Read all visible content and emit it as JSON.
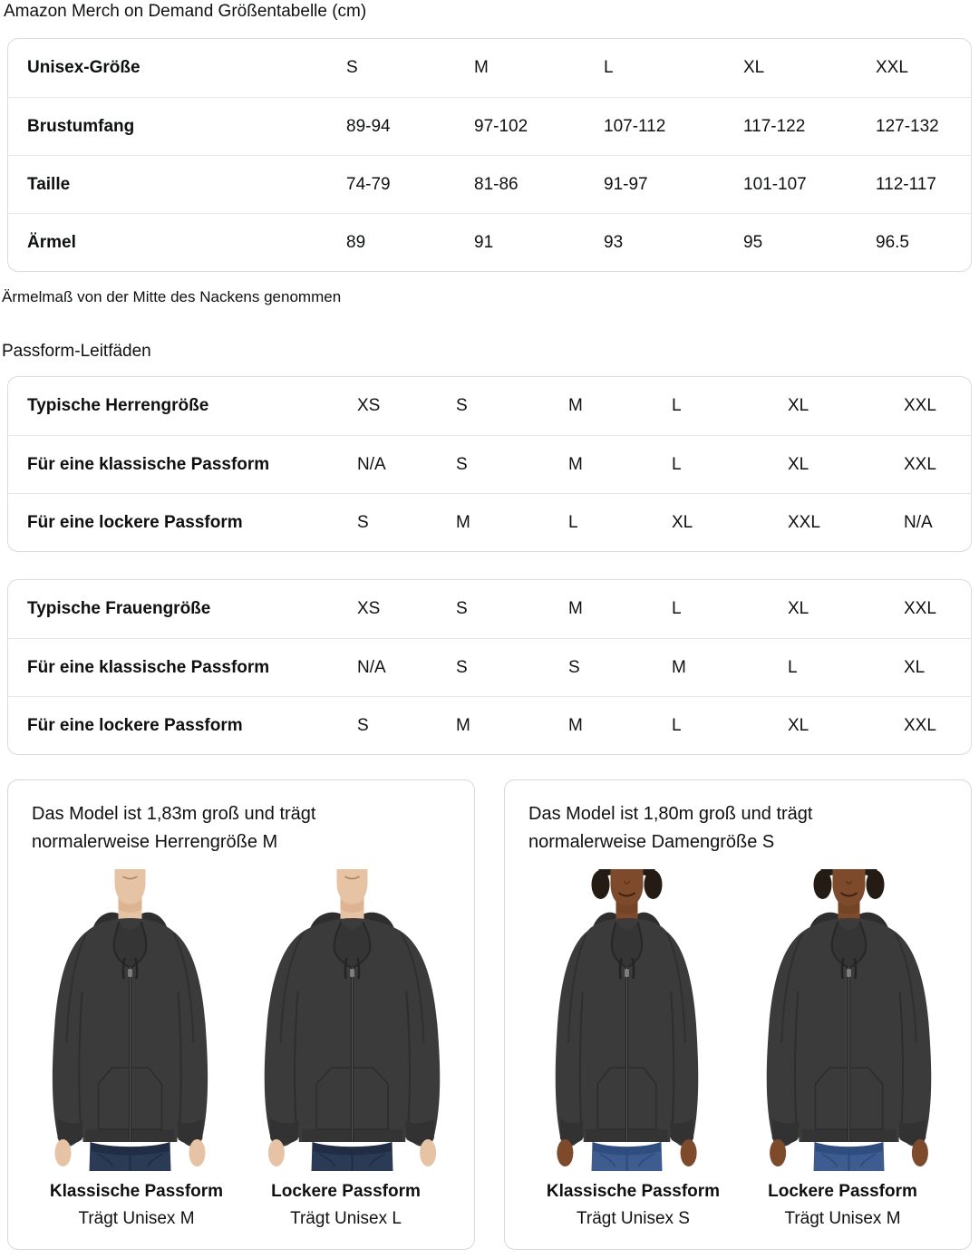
{
  "page": {
    "title": "Amazon Merch on Demand Größentabelle (cm)",
    "note": "Ärmelmaß von der Mitte des Nackens genommen",
    "fit_heading": "Passform-Leitfäden"
  },
  "size_table": {
    "header_label": "Unisex-Größe",
    "header_sizes": [
      "S",
      "M",
      "L",
      "XL",
      "XXL"
    ],
    "rows": [
      {
        "label": "Brustumfang",
        "values": [
          "89-94",
          "97-102",
          "107-112",
          "117-122",
          "127-132"
        ]
      },
      {
        "label": "Taille",
        "values": [
          "74-79",
          "81-86",
          "91-97",
          "101-107",
          "112-117"
        ]
      },
      {
        "label": "Ärmel",
        "values": [
          "89",
          "91",
          "93",
          "95",
          "96.5"
        ]
      }
    ]
  },
  "mens_fit_table": {
    "header_label": "Typische Herrengröße",
    "header_sizes": [
      "XS",
      "S",
      "M",
      "L",
      "XL",
      "XXL"
    ],
    "rows": [
      {
        "label": "Für eine klassische Passform",
        "values": [
          "N/A",
          "S",
          "M",
          "L",
          "XL",
          "XXL"
        ]
      },
      {
        "label": "Für eine lockere Passform",
        "values": [
          "S",
          "M",
          "L",
          "XL",
          "XXL",
          "N/A"
        ]
      }
    ]
  },
  "womens_fit_table": {
    "header_label": "Typische Frauengröße",
    "header_sizes": [
      "XS",
      "S",
      "M",
      "L",
      "XL",
      "XXL"
    ],
    "rows": [
      {
        "label": "Für eine klassische Passform",
        "values": [
          "N/A",
          "S",
          "S",
          "M",
          "L",
          "XL"
        ]
      },
      {
        "label": "Für eine lockere Passform",
        "values": [
          "S",
          "M",
          "M",
          "L",
          "XL",
          "XXL"
        ]
      }
    ]
  },
  "model_cards": [
    {
      "description": "Das Model ist 1,83m groß und trägt normalerweise Herrengröße M",
      "figures": [
        {
          "fit_label": "Klassische Passform",
          "size_label": "Trägt Unisex M"
        },
        {
          "fit_label": "Lockere Passform",
          "size_label": "Trägt Unisex L"
        }
      ]
    },
    {
      "description": "Das Model ist 1,80m groß und trägt normalerweise Damengröße S",
      "figures": [
        {
          "fit_label": "Klassische Passform",
          "size_label": "Trägt Unisex S"
        },
        {
          "fit_label": "Lockere Passform",
          "size_label": "Trägt Unisex M"
        }
      ]
    }
  ],
  "colors": {
    "text": "#0F1111",
    "table_border": "#D8DCDC",
    "row_separator": "#E7E7E7",
    "card_border": "#D5D9D9",
    "hoodie": "#3B3B3B",
    "jeans_men": "#2B3A55",
    "jeans_women": "#3E5C8F",
    "skin_men": "#E6C3A5",
    "skin_women": "#7D4B2C"
  }
}
